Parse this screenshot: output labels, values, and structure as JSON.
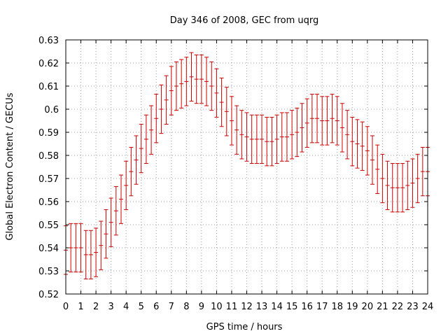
{
  "chart_data": {
    "type": "line",
    "title": "Day 346 of 2008, GEC from uqrg",
    "xlabel": "GPS time / hours",
    "ylabel": "Global Electron Content / GECUs",
    "xlim": [
      0,
      24
    ],
    "ylim": [
      0.52,
      0.63
    ],
    "xticks": [
      "0",
      "1",
      "2",
      "3",
      "4",
      "5",
      "6",
      "7",
      "8",
      "9",
      "10",
      "11",
      "12",
      "13",
      "14",
      "15",
      "16",
      "17",
      "18",
      "19",
      "20",
      "21",
      "22",
      "23",
      "24"
    ],
    "yticks": [
      "0.52",
      "0.53",
      "0.54",
      "0.55",
      "0.56",
      "0.57",
      "0.58",
      "0.59",
      "0.6",
      "0.61",
      "0.62",
      "0.63"
    ],
    "grid": true,
    "error_bar": 0.0105,
    "color": "#cc0000",
    "series": [
      {
        "name": "GEC",
        "x": [
          0,
          0.333,
          0.667,
          1,
          1.333,
          1.667,
          2,
          2.333,
          2.667,
          3,
          3.333,
          3.667,
          4,
          4.333,
          4.667,
          5,
          5.333,
          5.667,
          6,
          6.333,
          6.667,
          7,
          7.333,
          7.667,
          8,
          8.333,
          8.667,
          9,
          9.333,
          9.667,
          10,
          10.333,
          10.667,
          11,
          11.333,
          11.667,
          12,
          12.333,
          12.667,
          13,
          13.333,
          13.667,
          14,
          14.333,
          14.667,
          15,
          15.333,
          15.667,
          16,
          16.333,
          16.667,
          17,
          17.333,
          17.667,
          18,
          18.333,
          18.667,
          19,
          19.333,
          19.667,
          20,
          20.333,
          20.667,
          21,
          21.333,
          21.667,
          22,
          22.333,
          22.667,
          23,
          23.333,
          23.667,
          24
        ],
        "values": [
          0.539,
          0.54,
          0.54,
          0.54,
          0.537,
          0.537,
          0.538,
          0.541,
          0.546,
          0.551,
          0.556,
          0.561,
          0.567,
          0.573,
          0.578,
          0.583,
          0.587,
          0.591,
          0.596,
          0.6,
          0.604,
          0.608,
          0.61,
          0.611,
          0.612,
          0.614,
          0.613,
          0.613,
          0.612,
          0.61,
          0.607,
          0.603,
          0.599,
          0.595,
          0.591,
          0.589,
          0.588,
          0.587,
          0.587,
          0.587,
          0.586,
          0.586,
          0.587,
          0.588,
          0.588,
          0.589,
          0.59,
          0.592,
          0.594,
          0.596,
          0.596,
          0.595,
          0.595,
          0.596,
          0.595,
          0.592,
          0.589,
          0.586,
          0.585,
          0.584,
          0.582,
          0.578,
          0.574,
          0.57,
          0.567,
          0.566,
          0.566,
          0.566,
          0.567,
          0.568,
          0.57,
          0.573,
          0.573
        ]
      }
    ]
  }
}
